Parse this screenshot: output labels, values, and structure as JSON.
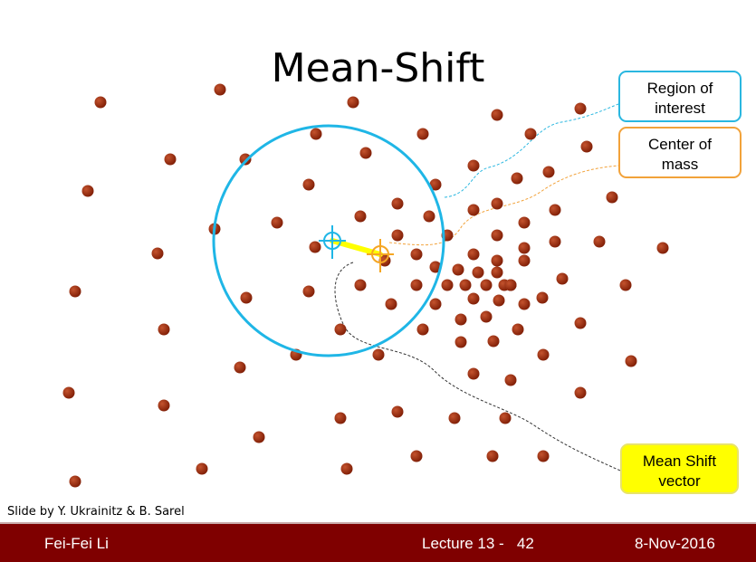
{
  "title": "Mean-Shift",
  "callouts": {
    "region_of_interest": "Region of\ninterest",
    "center_of_mass": "Center of\nmass",
    "mean_shift_vector": "Mean Shift\nvector"
  },
  "credit": "Slide by Y. Ukrainitz & B. Sarel",
  "footer": {
    "author": "Fei-Fei Li",
    "lecture": "Lecture 13 -   42",
    "date": "8-Nov-2016"
  },
  "colors": {
    "points": "#9b2a0a",
    "region_circle": "#1fb6e6",
    "center_marker": "#f5a623",
    "shift_arrow": "#ffff00",
    "footer_bar": "#7f0000"
  }
}
